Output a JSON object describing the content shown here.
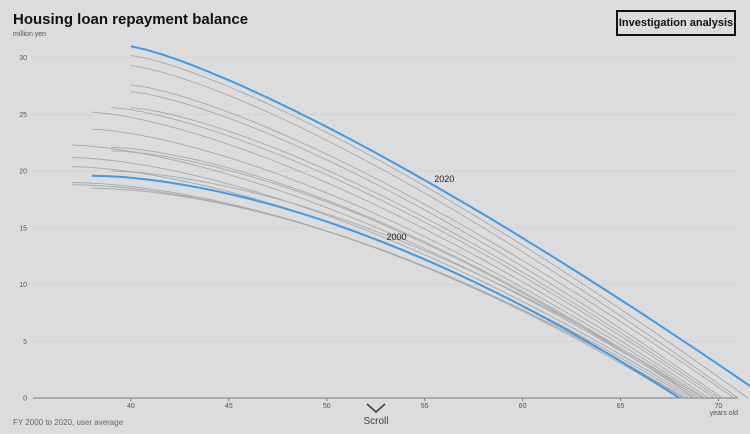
{
  "header": {
    "title": "Housing loan repayment balance",
    "unit": "million yen",
    "button_label": "Investigation analysis"
  },
  "footer": {
    "note": "FY 2000 to 2020, user average",
    "scroll_label": "Scroll",
    "scroll_icon": "chevron-down-icon"
  },
  "colors": {
    "highlight": "#3d9be9",
    "background_series": "#a8a8a8"
  },
  "chart_data": {
    "type": "line",
    "xlabel": "years old",
    "ylabel": "million yen",
    "xlim": [
      35,
      71
    ],
    "ylim": [
      0,
      32
    ],
    "x_ticks": [
      40,
      45,
      50,
      55,
      60,
      65,
      70
    ],
    "y_ticks": [
      0,
      5,
      10,
      15,
      20,
      25,
      30
    ],
    "grid": "horizontal dotted",
    "highlighted_series": [
      {
        "name": "2020",
        "start_age": 40.0,
        "end_age": 72.5,
        "start_value": 31.0,
        "curve": 0.25
      },
      {
        "name": "2000",
        "start_age": 38.0,
        "end_age": 68.0,
        "start_value": 19.6,
        "curve": 0.72
      }
    ],
    "background_series": [
      {
        "start_age": 40.0,
        "end_age": 71.5,
        "start_value": 30.2,
        "curve": 0.3
      },
      {
        "start_age": 40.0,
        "end_age": 71.0,
        "start_value": 29.3,
        "curve": 0.32
      },
      {
        "start_age": 40.0,
        "end_age": 70.8,
        "start_value": 27.6,
        "curve": 0.34
      },
      {
        "start_age": 40.0,
        "end_age": 70.2,
        "start_value": 27.0,
        "curve": 0.36
      },
      {
        "start_age": 40.0,
        "end_age": 70.0,
        "start_value": 25.6,
        "curve": 0.4
      },
      {
        "start_age": 39.0,
        "end_age": 69.8,
        "start_value": 25.6,
        "curve": 0.42
      },
      {
        "start_age": 38.0,
        "end_age": 69.5,
        "start_value": 25.2,
        "curve": 0.45
      },
      {
        "start_age": 38.0,
        "end_age": 69.3,
        "start_value": 23.7,
        "curve": 0.5
      },
      {
        "start_age": 37.0,
        "end_age": 69.0,
        "start_value": 22.3,
        "curve": 0.55
      },
      {
        "start_age": 39.0,
        "end_age": 69.0,
        "start_value": 22.1,
        "curve": 0.55
      },
      {
        "start_age": 39.0,
        "end_age": 68.8,
        "start_value": 21.8,
        "curve": 0.58
      },
      {
        "start_age": 37.0,
        "end_age": 68.7,
        "start_value": 21.2,
        "curve": 0.6
      },
      {
        "start_age": 37.0,
        "end_age": 68.5,
        "start_value": 20.4,
        "curve": 0.62
      },
      {
        "start_age": 39.0,
        "end_age": 69.2,
        "start_value": 20.0,
        "curve": 0.65
      },
      {
        "start_age": 37.0,
        "end_age": 68.3,
        "start_value": 19.0,
        "curve": 0.7
      },
      {
        "start_age": 37.0,
        "end_age": 68.0,
        "start_value": 18.8,
        "curve": 0.75
      },
      {
        "start_age": 38.0,
        "end_age": 68.2,
        "start_value": 18.5,
        "curve": 0.72
      }
    ]
  }
}
